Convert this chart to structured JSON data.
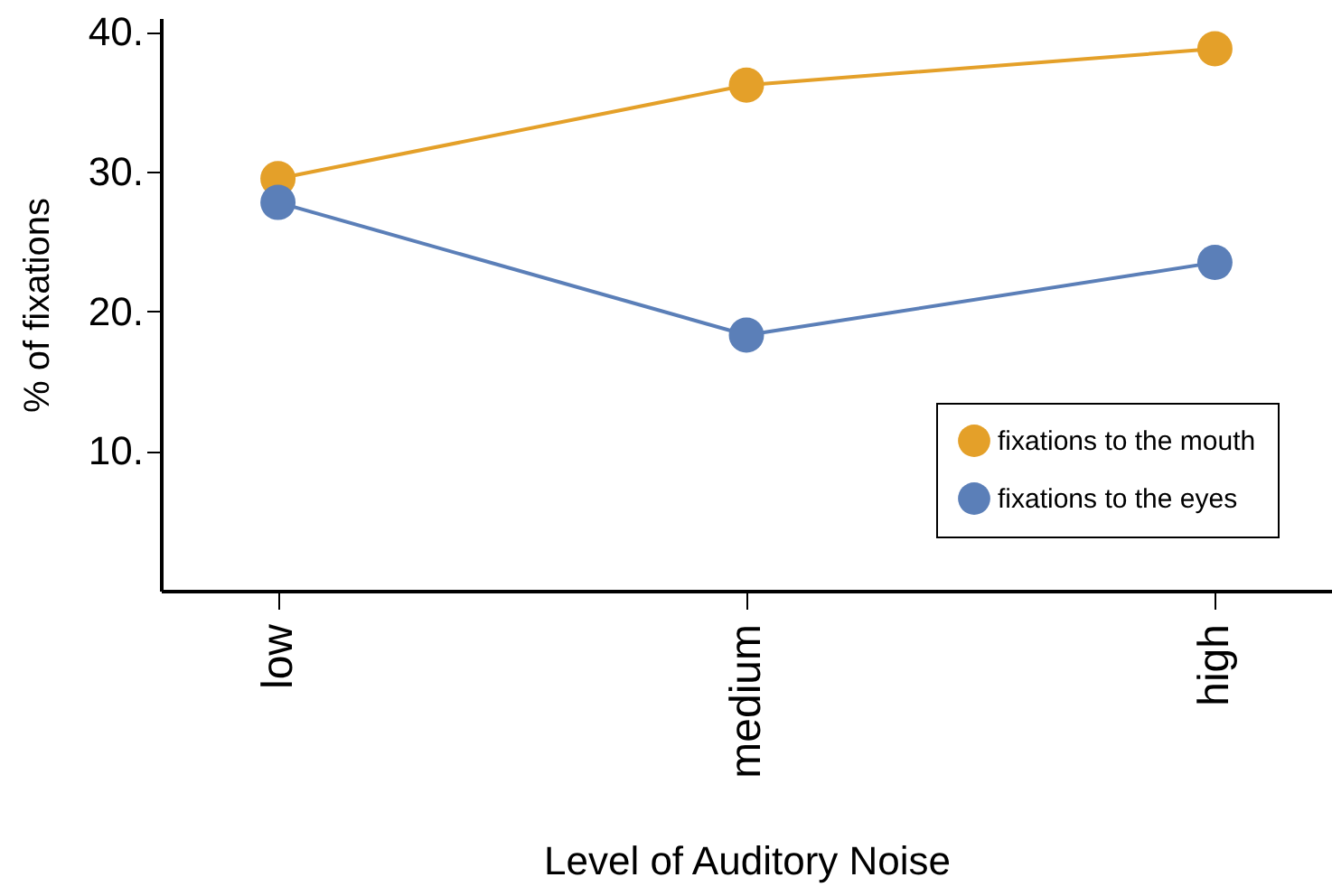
{
  "chart_data": {
    "type": "line",
    "xlabel": "Level of Auditory Noise",
    "ylabel": "% of fixations",
    "categories": [
      "low",
      "medium",
      "high"
    ],
    "series": [
      {
        "name": "fixations to the mouth",
        "color": "#e4a029",
        "values": [
          29.5,
          36.2,
          38.8
        ]
      },
      {
        "name": "fixations to the eyes",
        "color": "#5b7fb8",
        "values": [
          27.8,
          18.3,
          23.5
        ]
      }
    ],
    "ylim": [
      0,
      41
    ],
    "yticks": [
      {
        "value": 10,
        "label": "10."
      },
      {
        "value": 20,
        "label": "20."
      },
      {
        "value": 30,
        "label": "30."
      },
      {
        "value": 40,
        "label": "40."
      }
    ],
    "grid": false,
    "legend": "bottom right",
    "marker": "circle",
    "line_style": "solid"
  }
}
